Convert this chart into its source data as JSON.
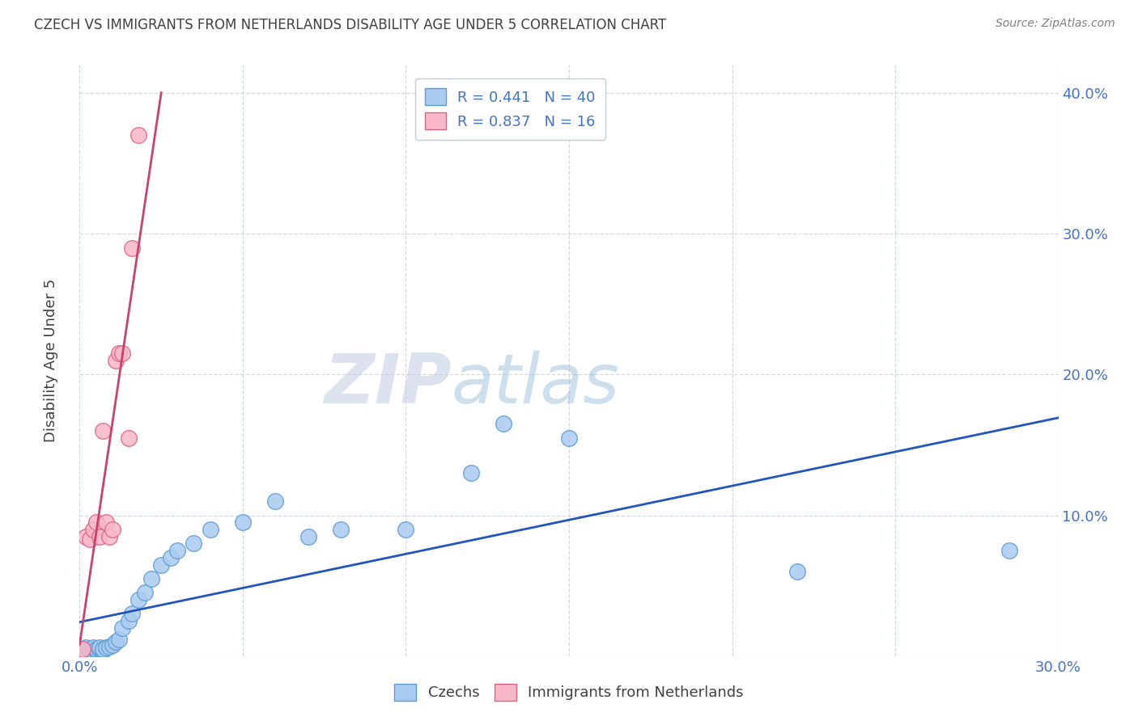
{
  "title": "CZECH VS IMMIGRANTS FROM NETHERLANDS DISABILITY AGE UNDER 5 CORRELATION CHART",
  "source": "Source: ZipAtlas.com",
  "ylabel_label": "Disability Age Under 5",
  "xlim": [
    0.0,
    0.3
  ],
  "ylim": [
    0.0,
    0.42
  ],
  "xticks": [
    0.0,
    0.05,
    0.1,
    0.15,
    0.2,
    0.25,
    0.3
  ],
  "yticks": [
    0.0,
    0.1,
    0.2,
    0.3,
    0.4
  ],
  "watermark_zip": "ZIP",
  "watermark_atlas": "atlas",
  "czechs_color": "#aacbf0",
  "czechs_edge_color": "#5b9bd5",
  "netherlands_color": "#f8b8c8",
  "netherlands_edge_color": "#e06080",
  "line_czechs_color": "#2255bb",
  "line_netherlands_color": "#cc4070",
  "czechs_R": 0.441,
  "czechs_N": 40,
  "netherlands_R": 0.837,
  "netherlands_N": 16,
  "czechs_x": [
    0.001,
    0.001,
    0.002,
    0.002,
    0.003,
    0.003,
    0.004,
    0.004,
    0.005,
    0.005,
    0.006,
    0.006,
    0.007,
    0.007,
    0.008,
    0.009,
    0.01,
    0.011,
    0.012,
    0.013,
    0.015,
    0.016,
    0.018,
    0.02,
    0.022,
    0.025,
    0.028,
    0.03,
    0.035,
    0.04,
    0.05,
    0.06,
    0.07,
    0.08,
    0.1,
    0.12,
    0.13,
    0.15,
    0.22,
    0.285
  ],
  "czechs_y": [
    0.004,
    0.005,
    0.003,
    0.006,
    0.004,
    0.005,
    0.003,
    0.006,
    0.004,
    0.005,
    0.005,
    0.006,
    0.004,
    0.005,
    0.006,
    0.007,
    0.008,
    0.01,
    0.012,
    0.02,
    0.025,
    0.03,
    0.04,
    0.045,
    0.055,
    0.065,
    0.07,
    0.075,
    0.08,
    0.09,
    0.095,
    0.11,
    0.085,
    0.09,
    0.09,
    0.13,
    0.165,
    0.155,
    0.06,
    0.075
  ],
  "netherlands_x": [
    0.001,
    0.002,
    0.003,
    0.004,
    0.005,
    0.006,
    0.007,
    0.008,
    0.009,
    0.01,
    0.011,
    0.012,
    0.013,
    0.015,
    0.016,
    0.018
  ],
  "netherlands_y": [
    0.005,
    0.085,
    0.083,
    0.09,
    0.095,
    0.085,
    0.16,
    0.095,
    0.085,
    0.09,
    0.21,
    0.215,
    0.215,
    0.155,
    0.29,
    0.37
  ],
  "legend_label_czechs": "Czechs",
  "legend_label_netherlands": "Immigrants from Netherlands",
  "background_color": "#ffffff",
  "grid_color": "#d0d8e8",
  "title_color": "#404040",
  "source_color": "#808080",
  "tick_label_color": "#4472c4",
  "ylabel_color": "#404040"
}
